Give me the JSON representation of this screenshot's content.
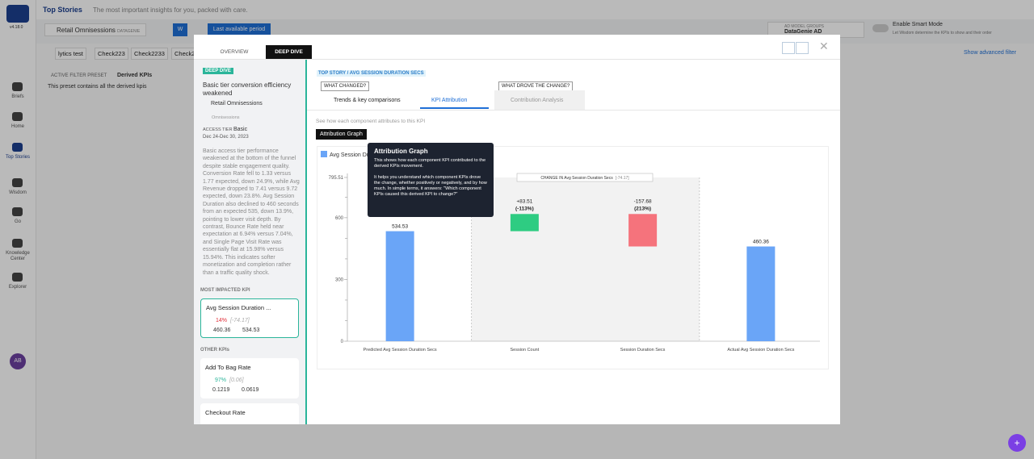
{
  "app": {
    "version": "v4.18.0",
    "page_title": "Top Stories",
    "page_subtitle": "The most important insights for you, packed with care.",
    "nav": [
      "Briefs",
      "Home",
      "Top Stories",
      "Wisdom",
      "Go",
      "Knowledge Center",
      "Explorer"
    ],
    "avatar": "AB",
    "dataset": "Retail Omnisessions",
    "dataset_tag": "DATAGENIE",
    "granularity": "W",
    "period": "Last available period",
    "model_group_label": "AD MODEL GROUPS",
    "model_group": "DataGenie AD",
    "smart_mode": "Enable Smart Mode",
    "smart_mode_hint": "Let Wisdom determine the KPIs to show and their order",
    "preset_tabs": [
      "lytics test",
      "Check223",
      "Check2233",
      "Check22"
    ],
    "advanced_filter": "Show advanced filter",
    "preset_label": "ACTIVE FILTER PRESET",
    "preset_name": "Derived KPIs",
    "preset_desc": "This preset contains all the derived kpis"
  },
  "modal": {
    "tabs": [
      "OVERVIEW",
      "DEEP DIVE"
    ],
    "story": {
      "badge": "DEEP DIVE",
      "title": "Basic tier conversion efficiency weakened",
      "dataset": "Retail Omnisessions",
      "metric_group": "Omnisessions",
      "tier_label": "ACCESS TIER",
      "tier": "Basic",
      "dates": "Dec 24-Dec 30, 2023",
      "summary": "Basic access tier performance weakened at the bottom of the funnel despite stable engagement quality. Conversion Rate fell to 1.33 versus 1.77 expected, down 24.9%, while Avg Revenue dropped to 7.41 versus 9.72 expected, down 23.8%. Avg Session Duration also declined to 460 seconds from an expected 535, down 13.9%, pointing to lower visit depth. By contrast, Bounce Rate held near expectation at 6.94% versus 7.04%, and Single Page Visit Rate was essentially flat at 15.98% versus 15.94%. This indicates softer monetization and completion rather than a traffic quality shock."
    },
    "most_impacted_label": "MOST IMPACTED KPI",
    "other_label": "OTHER KPIs",
    "kpis": [
      {
        "name": "Avg Session Duration ...",
        "change": "14%",
        "delta": "[-74.17]",
        "actual": "460.36",
        "expected": "534.53"
      },
      {
        "name": "Add To Bag Rate",
        "change": "97%",
        "delta": "[0.06]",
        "actual": "0.1219",
        "expected": "0.0619"
      },
      {
        "name": "Checkout Rate"
      }
    ],
    "breadcrumb": "TOP STORY / AVG SESSION DURATION SECS",
    "section_what": "WHAT CHANGED?",
    "section_why": "WHAT DROVE THE CHANGE?",
    "subtabs": [
      "Trends & key comparisons",
      "KPI Attribution",
      "Contribution Analysis"
    ],
    "hint": "See how each component attributes to this KPI",
    "button": "Attribution Graph",
    "tooltip": {
      "title": "Attribution Graph",
      "line1": "This shows how each component KPI contributed to the derived KPIs movement.",
      "line2": "It helps you understand which component KPIs drove the change, whether positively or negatively, and by how much. In simple terms, it answers: \"Which component KPIs caused this derived KPI to change?\""
    }
  },
  "chart_data": {
    "type": "waterfall",
    "series_name": "Avg Session Duration Secs",
    "categories": [
      "Predicted Avg Session Duration Secs",
      "Session Count",
      "Session Duration Secs",
      "Actual Avg Session Duration Secs"
    ],
    "values": [
      534.53,
      83.51,
      -157.68,
      460.36
    ],
    "value_labels": [
      "534.53",
      "+83.51",
      "-157.68",
      "460.36"
    ],
    "share_labels": [
      null,
      "(-113%)",
      "(213%)",
      null
    ],
    "is_total": [
      true,
      false,
      false,
      true
    ],
    "total_color": "#6aa5f7",
    "increase_color": "#2ecc82",
    "decrease_color": "#f5737c",
    "annotation": "CHANGE IN Avg Session Duration Secs",
    "annotation_value": "[-74.17]",
    "ylim": [
      0,
      795.51
    ],
    "yticks": [
      0,
      300,
      600,
      795.51
    ],
    "minor_yticks": [
      100,
      200,
      400,
      500,
      700
    ]
  }
}
